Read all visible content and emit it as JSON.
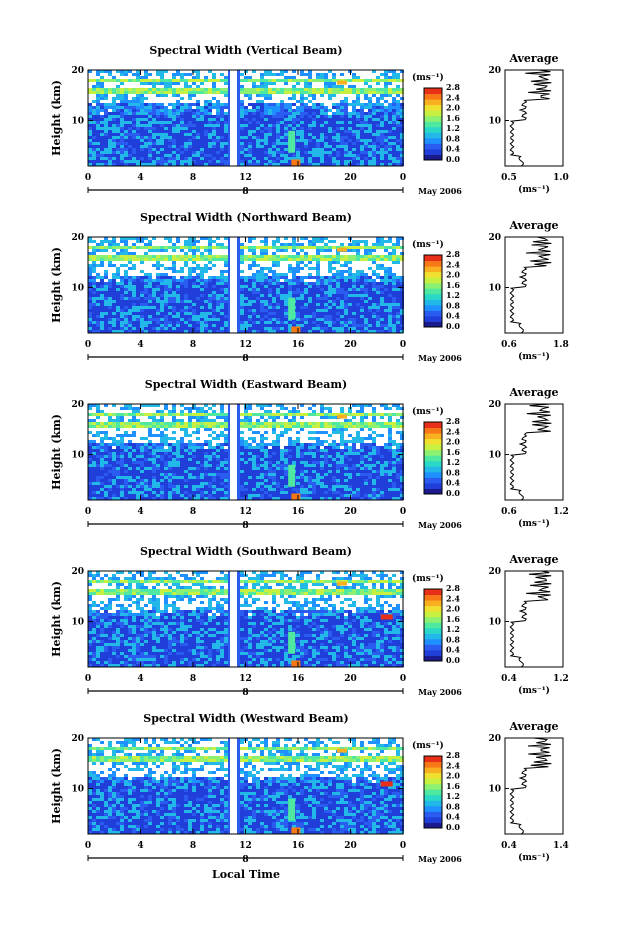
{
  "figure": {
    "xlabel": "Local Time",
    "date_label": "May 2006",
    "day_label": "8",
    "cbar_unit": "(ms⁻¹)",
    "avg_title": "Average",
    "avg_xlabel": "(ms⁻¹)",
    "ylabel": "Height (km)"
  },
  "colors": {
    "colormap": [
      "#1a1a8c",
      "#1f3fd8",
      "#2a5cf0",
      "#1e90ff",
      "#22b8e8",
      "#2ad8c8",
      "#4fe8a0",
      "#8cf070",
      "#c8f040",
      "#f0e030",
      "#f8b020",
      "#f87818",
      "#e83018"
    ]
  },
  "chart_data": [
    {
      "type": "heatmap",
      "title": "Spectral Width (Vertical Beam)",
      "x": [
        0,
        4,
        8,
        12,
        16,
        20,
        0
      ],
      "y_ticks": [
        10,
        20
      ],
      "colorbar": [
        0.0,
        0.4,
        0.8,
        1.2,
        1.6,
        2.0,
        2.4,
        2.8
      ],
      "average_profile": {
        "xlim": [
          0.5,
          1.0
        ],
        "x_ticks": [
          "0.5",
          "1.0"
        ]
      }
    },
    {
      "type": "heatmap",
      "title": "Spectral Width (Northward Beam)",
      "x": [
        0,
        4,
        8,
        12,
        16,
        20,
        0
      ],
      "y_ticks": [
        10,
        20
      ],
      "colorbar": [
        0.0,
        0.4,
        0.8,
        1.2,
        1.6,
        2.0,
        2.4,
        2.8
      ],
      "average_profile": {
        "xlim": [
          0.6,
          1.8
        ],
        "x_ticks": [
          "0.6",
          "1.8"
        ]
      }
    },
    {
      "type": "heatmap",
      "title": "Spectral Width (Eastward Beam)",
      "x": [
        0,
        4,
        8,
        12,
        16,
        20,
        0
      ],
      "y_ticks": [
        10,
        20
      ],
      "colorbar": [
        0.0,
        0.4,
        0.8,
        1.2,
        1.6,
        2.0,
        2.4,
        2.8
      ],
      "average_profile": {
        "xlim": [
          0.6,
          1.2
        ],
        "x_ticks": [
          "0.6",
          "1.2"
        ]
      }
    },
    {
      "type": "heatmap",
      "title": "Spectral Width (Southward Beam)",
      "x": [
        0,
        4,
        8,
        12,
        16,
        20,
        0
      ],
      "y_ticks": [
        10,
        20
      ],
      "colorbar": [
        0.0,
        0.4,
        0.8,
        1.2,
        1.6,
        2.0,
        2.4,
        2.8
      ],
      "average_profile": {
        "xlim": [
          0.4,
          1.2
        ],
        "x_ticks": [
          "0.4",
          "1.2"
        ]
      }
    },
    {
      "type": "heatmap",
      "title": "Spectral Width (Westward Beam)",
      "x": [
        0,
        4,
        8,
        12,
        16,
        20,
        0
      ],
      "y_ticks": [
        10,
        20
      ],
      "colorbar": [
        0.0,
        0.4,
        0.8,
        1.2,
        1.6,
        2.0,
        2.4,
        2.8
      ],
      "average_profile": {
        "xlim": [
          0.4,
          1.4
        ],
        "x_ticks": [
          "0.4",
          "1.4"
        ]
      }
    }
  ]
}
